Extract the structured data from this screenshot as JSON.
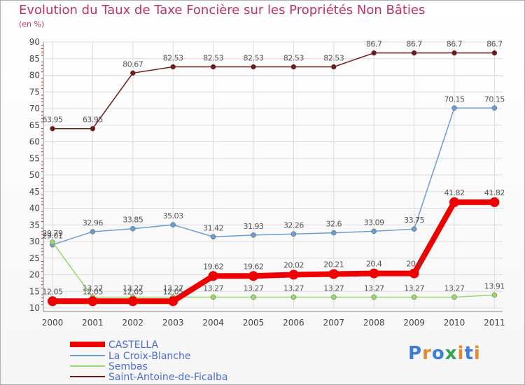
{
  "chart_data": {
    "type": "line",
    "title": "Evolution du Taux de Taxe Foncière sur les Propriétés Non Bâties",
    "ylabel": "(en %)",
    "xlabel": "",
    "ylim": [
      10,
      90
    ],
    "yticks": [
      "10",
      "15",
      "20",
      "25",
      "30",
      "35",
      "40",
      "45",
      "50",
      "55",
      "60",
      "65",
      "70",
      "75",
      "80",
      "85",
      "90"
    ],
    "categories": [
      "2000",
      "2001",
      "2002",
      "2003",
      "2004",
      "2005",
      "2006",
      "2007",
      "2008",
      "2009",
      "2010",
      "2011"
    ],
    "series": [
      {
        "name": "Saint-Antoine-de-Ficalba",
        "color": "#6e1a1a",
        "values": [
          63.95,
          63.95,
          80.67,
          82.53,
          82.53,
          82.53,
          82.53,
          82.53,
          86.7,
          86.7,
          86.7,
          86.7
        ],
        "labels": [
          "63.95",
          "63.95",
          "80.67",
          "82.53",
          "82.53",
          "82.53",
          "82.53",
          "82.53",
          "86.7",
          "86.7",
          "86.7",
          "86.7"
        ]
      },
      {
        "name": "La Croix-Blanche",
        "color": "#6a9ed1",
        "values": [
          29.01,
          32.96,
          33.85,
          35.03,
          31.42,
          31.93,
          32.26,
          32.6,
          33.09,
          33.75,
          70.15,
          70.15
        ],
        "labels": [
          "29.01",
          "32.96",
          "33.85",
          "35.03",
          "31.42",
          "31.93",
          "32.26",
          "32.6",
          "33.09",
          "33.75",
          "70.15",
          "70.15"
        ]
      },
      {
        "name": "Sembas",
        "color": "#9bd86a",
        "values": [
          29.79,
          13.27,
          13.27,
          13.27,
          13.27,
          13.27,
          13.27,
          13.27,
          13.27,
          13.27,
          13.27,
          13.91
        ],
        "labels": [
          "29.79",
          "13.27",
          "13.27",
          "13.27",
          "13.27",
          "13.27",
          "13.27",
          "13.27",
          "13.27",
          "13.27",
          "13.27",
          "13.91"
        ]
      },
      {
        "name": "CASTELLA",
        "color": "#ee0000",
        "values": [
          12.05,
          12.05,
          12.05,
          12.05,
          19.62,
          19.62,
          20.02,
          20.21,
          20.4,
          20.4,
          41.82,
          41.82
        ],
        "labels": [
          "12.05",
          "12.05",
          "12.05",
          "12.05",
          "19.62",
          "19.62",
          "20.02",
          "20.21",
          "20.4",
          "20.4",
          "41.82",
          "41.82"
        ]
      }
    ],
    "legend": [
      "CASTELLA",
      "La Croix-Blanche",
      "Sembas",
      "Saint-Antoine-de-Ficalba"
    ],
    "legend_colors": [
      "#ee0000",
      "#6a9ed1",
      "#9bd86a",
      "#6e1a1a"
    ],
    "grid": true
  },
  "logo": {
    "letters": [
      "P",
      "r",
      "o",
      "x",
      "i",
      "t",
      "i"
    ],
    "colors": [
      "#3d7fd6",
      "#e8892a",
      "#3d7fd6",
      "#2fa84f",
      "#e8892a",
      "#3d7fd6",
      "#e8892a"
    ]
  }
}
